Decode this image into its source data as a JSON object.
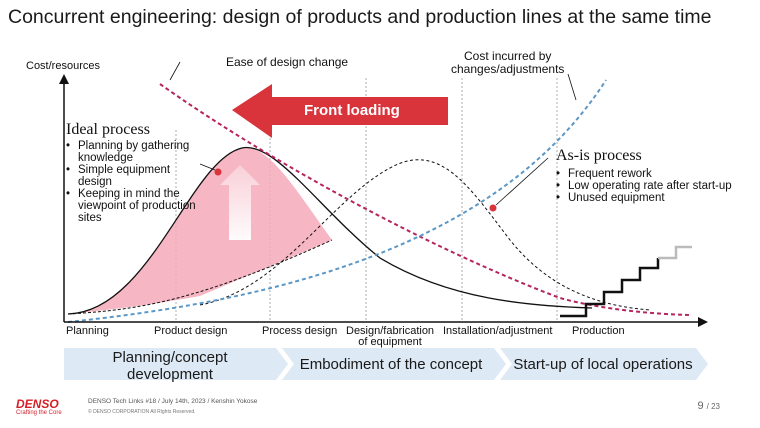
{
  "title": "Concurrent engineering: design of products and production lines at the same time",
  "y_axis_label": "Cost/resources",
  "ease_label": "Ease of design change",
  "cost_label": "Cost incurred by changes/adjustments",
  "cost_label_line1": "Cost incurred by",
  "cost_label_line2": "changes/adjustments",
  "front_loading": "Front loading",
  "ideal": {
    "title": "Ideal process",
    "bullets": [
      "Planning by gathering knowledge",
      "Simple equipment design",
      "Keeping in mind the viewpoint of production sites"
    ]
  },
  "asis": {
    "title": "As-is process",
    "bullets": [
      "Frequent rework",
      "Low operating rate after start-up",
      "Unused equipment"
    ]
  },
  "stages": [
    "Planning",
    "Product design",
    "Process design",
    "Design/fabrication of equipment",
    "Installation/adjustment",
    "Production"
  ],
  "stage_fab_line1": "Design/fabrication",
  "stage_fab_line2": "of equipment",
  "phases": {
    "p1_line1": "Planning/concept",
    "p1_line2": "development",
    "p2": "Embodiment of the concept",
    "p3": "Start-up of local operations"
  },
  "footer": {
    "brand": "DENSO",
    "tagline": "Crafting the Core",
    "event": "DENSO Tech Links #18 / July 14th, 2023 / Kenshin Yokose",
    "copyright": "© DENSO CORPORATION All Rights Reserved.",
    "page": "9",
    "total": "/ 23"
  },
  "colors": {
    "accent_red": "#d9333b",
    "ease_curve": "#b5245e",
    "cost_curve": "#5b97c7",
    "ideal_fill": "#f4a9b8",
    "phase_band": "#dde9f4"
  }
}
